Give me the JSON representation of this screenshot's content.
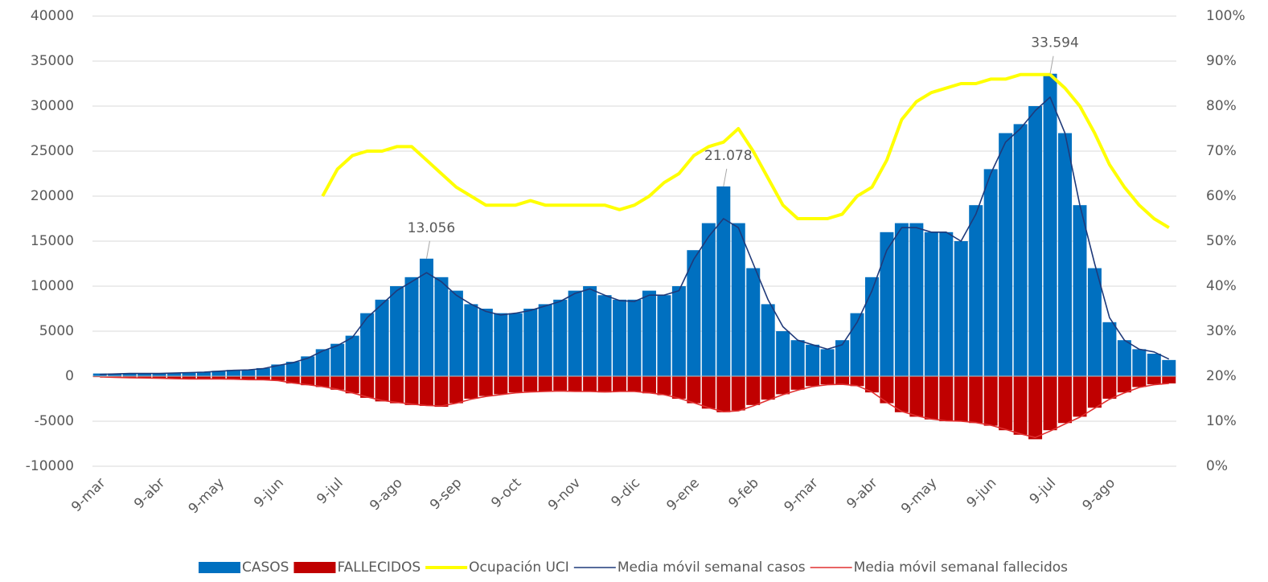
{
  "chart_data": {
    "type": "bar",
    "categories": [
      "9-mar",
      null,
      null,
      null,
      "9-abr",
      null,
      null,
      null,
      "9-may",
      null,
      null,
      null,
      "9-jun",
      null,
      null,
      null,
      "9-jul",
      null,
      null,
      null,
      "9-ago",
      null,
      null,
      null,
      "9-sep",
      null,
      null,
      null,
      "9-oct",
      null,
      null,
      null,
      "9-nov",
      null,
      null,
      null,
      "9-dic",
      null,
      null,
      null,
      "9-ene",
      null,
      null,
      null,
      "9-feb",
      null,
      null,
      null,
      "9-mar",
      null,
      null,
      null,
      "9-abr",
      null,
      null,
      null,
      "9-may",
      null,
      null,
      null,
      "9-jun",
      null,
      null,
      null,
      "9-jul",
      null,
      null,
      null,
      "9-ago",
      null,
      null,
      null,
      null
    ],
    "series": [
      {
        "name": "CASOS",
        "kind": "bar",
        "color": "#0070c0",
        "values": [
          300,
          300,
          300,
          300,
          300,
          400,
          400,
          500,
          600,
          700,
          700,
          900,
          1300,
          1600,
          2200,
          3000,
          3600,
          4500,
          7000,
          8500,
          10000,
          11000,
          13056,
          11000,
          9500,
          8000,
          7500,
          7000,
          7000,
          7500,
          8000,
          8500,
          9500,
          10000,
          9000,
          8500,
          8500,
          9500,
          9000,
          10000,
          14000,
          17000,
          21078,
          17000,
          12000,
          8000,
          5000,
          4000,
          3500,
          3000,
          4000,
          7000,
          11000,
          16000,
          17000,
          17000,
          16000,
          16000,
          15000,
          19000,
          23000,
          27000,
          28000,
          30000,
          33594,
          27000,
          19000,
          12000,
          6000,
          4000,
          3000,
          2500,
          1800
        ],
        "value_labels": [
          null,
          null,
          null,
          null,
          null,
          null,
          null,
          null,
          null,
          null,
          null,
          null,
          null,
          null,
          null,
          null,
          null,
          null,
          null,
          null,
          null,
          null,
          "13.056",
          null,
          null,
          null,
          null,
          null,
          null,
          null,
          null,
          null,
          null,
          null,
          null,
          null,
          null,
          null,
          null,
          null,
          null,
          null,
          "21.078",
          null,
          null,
          null,
          null,
          null,
          null,
          null,
          null,
          null,
          null,
          null,
          null,
          null,
          null,
          null,
          null,
          null,
          null,
          null,
          null,
          null,
          "33.594",
          null,
          null,
          null,
          null,
          null,
          null,
          null,
          null
        ]
      },
      {
        "name": "FALLECIDOS",
        "kind": "bar",
        "color": "#c00000",
        "values": [
          -100,
          -150,
          -200,
          -200,
          -250,
          -300,
          -300,
          -300,
          -300,
          -350,
          -400,
          -400,
          -500,
          -800,
          -1000,
          -1200,
          -1500,
          -1900,
          -2400,
          -2800,
          -3000,
          -3200,
          -3300,
          -3400,
          -3000,
          -2500,
          -2200,
          -2000,
          -1800,
          -1700,
          -1700,
          -1600,
          -1700,
          -1700,
          -1800,
          -1700,
          -1700,
          -1900,
          -2100,
          -2500,
          -3000,
          -3600,
          -4000,
          -3800,
          -3200,
          -2600,
          -2000,
          -1500,
          -1100,
          -900,
          -900,
          -1100,
          -1800,
          -3000,
          -4000,
          -4500,
          -4800,
          -5000,
          -5000,
          -5200,
          -5500,
          -6000,
          -6500,
          -7000,
          -6000,
          -5200,
          -4500,
          -3500,
          -2500,
          -1800,
          -1200,
          -900,
          -800
        ]
      },
      {
        "name": "Ocupación UCI",
        "kind": "line",
        "axis": "y2",
        "color": "#ffff00",
        "values": [
          null,
          null,
          null,
          null,
          null,
          null,
          null,
          null,
          null,
          null,
          null,
          null,
          null,
          null,
          null,
          60,
          66,
          69,
          70,
          70,
          71,
          71,
          68,
          65,
          62,
          60,
          58,
          58,
          58,
          59,
          58,
          58,
          58,
          58,
          58,
          57,
          58,
          60,
          63,
          65,
          69,
          71,
          72,
          75,
          70,
          64,
          58,
          55,
          55,
          55,
          56,
          60,
          62,
          68,
          77,
          81,
          83,
          84,
          85,
          85,
          86,
          86,
          87,
          87,
          87,
          84,
          80,
          74,
          67,
          62,
          58,
          55,
          53
        ]
      },
      {
        "name": "Media móvil semanal casos",
        "kind": "line",
        "color": "#1f3a7a",
        "values": [
          200,
          250,
          300,
          300,
          300,
          350,
          400,
          450,
          550,
          650,
          700,
          850,
          1200,
          1500,
          2000,
          2800,
          3400,
          4300,
          6500,
          8000,
          9500,
          10500,
          11500,
          10500,
          9000,
          8000,
          7200,
          6800,
          7000,
          7300,
          7800,
          8300,
          9200,
          9700,
          9000,
          8400,
          8300,
          9000,
          9000,
          9500,
          13000,
          15500,
          17500,
          16500,
          12500,
          8500,
          5500,
          4000,
          3500,
          3000,
          3500,
          6000,
          9500,
          14000,
          16500,
          16500,
          16000,
          16000,
          15000,
          18000,
          22500,
          26000,
          27500,
          29500,
          31000,
          27000,
          19000,
          12500,
          6500,
          4000,
          3000,
          2700,
          1900
        ]
      },
      {
        "name": "Media móvil semanal fallecidos",
        "kind": "line",
        "color": "#e03030",
        "values": [
          -80,
          -130,
          -180,
          -200,
          -230,
          -280,
          -300,
          -300,
          -300,
          -330,
          -380,
          -400,
          -480,
          -750,
          -950,
          -1150,
          -1450,
          -1850,
          -2300,
          -2700,
          -2900,
          -3100,
          -3250,
          -3300,
          -3000,
          -2550,
          -2250,
          -2050,
          -1850,
          -1750,
          -1700,
          -1650,
          -1700,
          -1700,
          -1750,
          -1700,
          -1700,
          -1850,
          -2050,
          -2450,
          -2950,
          -3500,
          -3950,
          -3850,
          -3300,
          -2650,
          -2050,
          -1550,
          -1150,
          -950,
          -900,
          -1050,
          -1750,
          -2900,
          -3900,
          -4400,
          -4750,
          -4950,
          -5000,
          -5150,
          -5450,
          -5900,
          -6400,
          -6800,
          -6100,
          -5300,
          -4550,
          -3550,
          -2550,
          -1850,
          -1250,
          -950,
          -800
        ]
      }
    ],
    "ylim": [
      -10000,
      40000
    ],
    "yticks": [
      -10000,
      -5000,
      0,
      5000,
      10000,
      15000,
      20000,
      25000,
      30000,
      35000,
      40000
    ],
    "y2lim": [
      0,
      100
    ],
    "y2ticks": [
      {
        "value": 0,
        "label": "0%"
      },
      {
        "value": 10,
        "label": "10%"
      },
      {
        "value": 20,
        "label": "20%"
      },
      {
        "value": 30,
        "label": "30%"
      },
      {
        "value": 40,
        "label": "40%"
      },
      {
        "value": 50,
        "label": "50%"
      },
      {
        "value": 60,
        "label": "60%"
      },
      {
        "value": 70,
        "label": "70%"
      },
      {
        "value": 80,
        "label": "80%"
      },
      {
        "value": 90,
        "label": "90%"
      },
      {
        "value": 100,
        "label": "100%"
      }
    ],
    "grid": true,
    "legend": "bottom"
  }
}
